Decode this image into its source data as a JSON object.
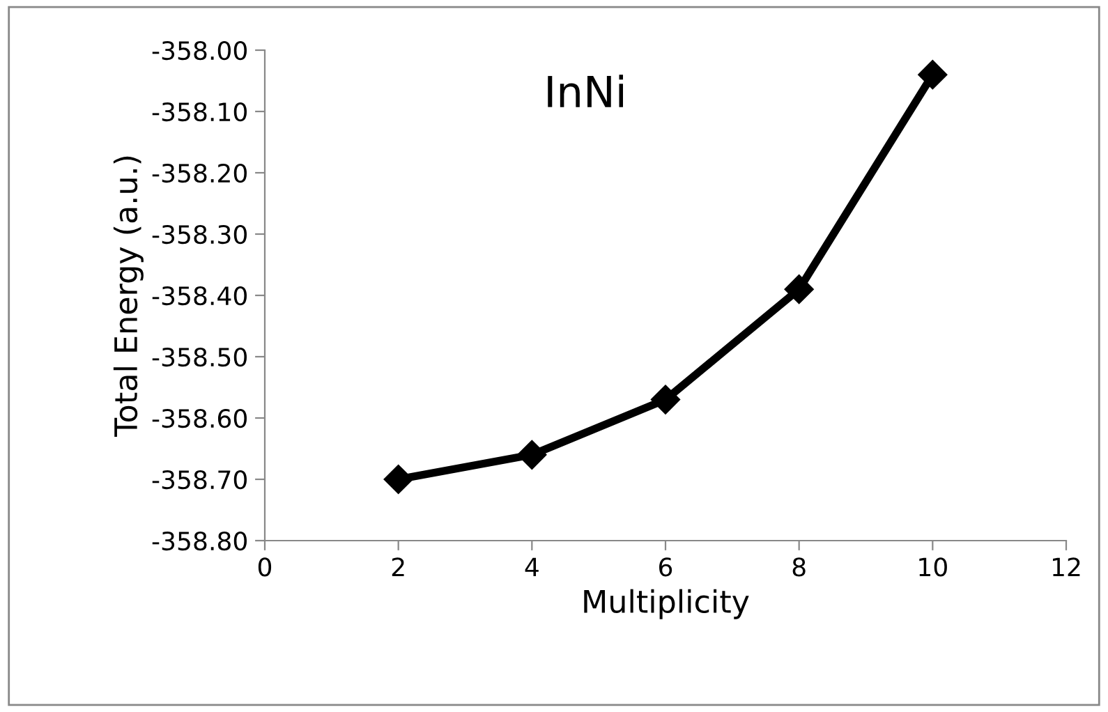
{
  "chart_data": {
    "type": "line",
    "title": "InNi",
    "xlabel": "Multiplicity",
    "ylabel": "Total Energy (a.u.)",
    "x": [
      2,
      4,
      6,
      8,
      10
    ],
    "series": [
      {
        "color": "#000000",
        "values": [
          -358.7,
          -358.66,
          -358.57,
          -358.39,
          -358.04
        ]
      }
    ],
    "xlim": [
      0,
      12
    ],
    "xticks": [
      0,
      2,
      4,
      6,
      8,
      10,
      12
    ],
    "ylim": [
      -358.8,
      -358.0
    ],
    "yticks": [
      {
        "value": -358.8,
        "label": "-358.80"
      },
      {
        "value": -358.7,
        "label": "-358.70"
      },
      {
        "value": -358.6,
        "label": "-358.60"
      },
      {
        "value": -358.5,
        "label": "-358.50"
      },
      {
        "value": -358.4,
        "label": "-358.40"
      },
      {
        "value": -358.3,
        "label": "-358.30"
      },
      {
        "value": -358.2,
        "label": "-358.20"
      },
      {
        "value": -358.1,
        "label": "-358.10"
      },
      {
        "value": -358.0,
        "label": "-358.00"
      }
    ],
    "grid": false,
    "legend": false,
    "marker": "diamond",
    "line_style": "solid"
  }
}
